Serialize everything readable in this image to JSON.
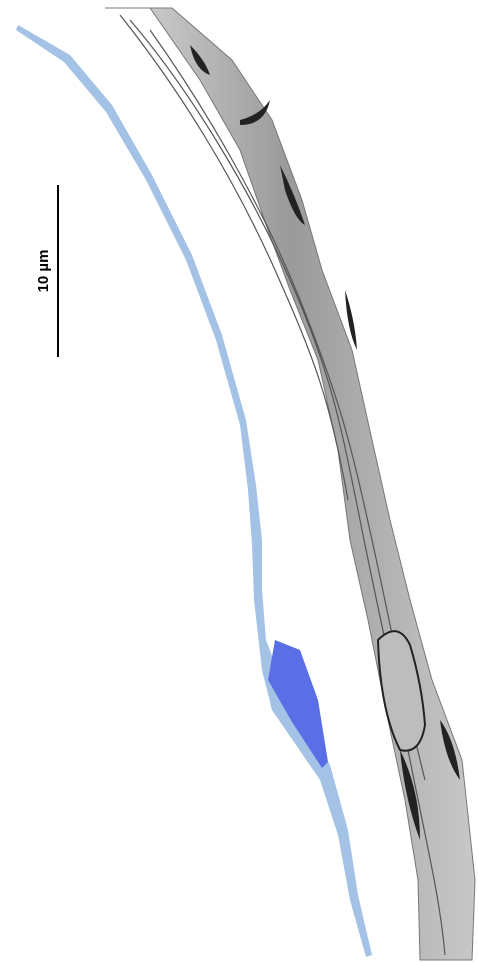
{
  "scale_bar": {
    "label": "10 µm"
  }
}
